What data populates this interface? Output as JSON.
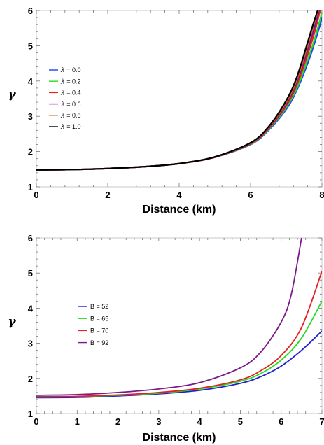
{
  "chart_data": [
    {
      "type": "line",
      "title": "",
      "xlabel": "Distance (km)",
      "ylabel": "γ",
      "xlim": [
        0,
        8
      ],
      "ylim": [
        1,
        6
      ],
      "xticks": [
        0,
        2,
        4,
        6,
        8
      ],
      "yticks": [
        1,
        2,
        3,
        4,
        5,
        6
      ],
      "grid": false,
      "legend_position": "left",
      "legend_symbol": "λ",
      "series": [
        {
          "name": "λ = 0.0",
          "legend_value": "0.0",
          "color": "#1f3fff",
          "x": [
            0,
            1,
            2,
            3,
            4,
            5,
            6,
            6.5,
            7,
            7.3,
            7.6,
            7.8,
            7.95,
            8
          ],
          "y": [
            1.48,
            1.49,
            1.52,
            1.57,
            1.66,
            1.84,
            2.2,
            2.6,
            3.2,
            3.75,
            4.5,
            5.1,
            5.6,
            5.8
          ]
        },
        {
          "name": "λ = 0.2",
          "legend_value": "0.2",
          "color": "#22dd22",
          "x": [
            0,
            1,
            2,
            3,
            4,
            5,
            6,
            6.5,
            7,
            7.3,
            7.6,
            7.8,
            7.95,
            8
          ],
          "y": [
            1.48,
            1.49,
            1.52,
            1.57,
            1.66,
            1.84,
            2.21,
            2.62,
            3.25,
            3.8,
            4.6,
            5.2,
            5.75,
            5.95
          ]
        },
        {
          "name": "λ = 0.4",
          "legend_value": "0.4",
          "color": "#e62020",
          "x": [
            0,
            1,
            2,
            3,
            4,
            5,
            6,
            6.5,
            7,
            7.3,
            7.6,
            7.8,
            7.95
          ],
          "y": [
            1.48,
            1.49,
            1.52,
            1.57,
            1.66,
            1.84,
            2.22,
            2.64,
            3.3,
            3.9,
            4.75,
            5.4,
            6.0
          ]
        },
        {
          "name": "λ = 0.6",
          "legend_value": "0.6",
          "color": "#7a1a8a",
          "x": [
            0,
            1,
            2,
            3,
            4,
            5,
            6,
            6.5,
            7,
            7.3,
            7.6,
            7.8,
            7.92
          ],
          "y": [
            1.48,
            1.49,
            1.52,
            1.57,
            1.66,
            1.84,
            2.23,
            2.66,
            3.35,
            3.98,
            4.88,
            5.55,
            6.0
          ]
        },
        {
          "name": "λ = 0.8",
          "legend_value": "0.8",
          "color": "#c8641e",
          "x": [
            0,
            1,
            2,
            3,
            4,
            5,
            6,
            6.5,
            7,
            7.3,
            7.6,
            7.8,
            7.9
          ],
          "y": [
            1.48,
            1.49,
            1.52,
            1.57,
            1.66,
            1.85,
            2.24,
            2.68,
            3.4,
            4.05,
            5.0,
            5.7,
            6.0
          ]
        },
        {
          "name": "λ = 1.0",
          "legend_value": "1.0",
          "color": "#000000",
          "x": [
            0,
            1,
            2,
            3,
            4,
            5,
            6,
            6.5,
            7,
            7.3,
            7.6,
            7.75,
            7.88
          ],
          "y": [
            1.48,
            1.49,
            1.52,
            1.57,
            1.66,
            1.85,
            2.25,
            2.7,
            3.45,
            4.12,
            5.1,
            5.6,
            6.0
          ]
        }
      ]
    },
    {
      "type": "line",
      "title": "",
      "xlabel": "Distance (km)",
      "ylabel": "γ",
      "xlim": [
        0,
        7
      ],
      "ylim": [
        1,
        6
      ],
      "xticks": [
        0,
        1,
        2,
        3,
        4,
        5,
        6,
        7
      ],
      "yticks": [
        1,
        2,
        3,
        4,
        5,
        6
      ],
      "grid": false,
      "legend_position": "left",
      "series": [
        {
          "name": "B = 52",
          "color": "#1f1fd0",
          "x": [
            0,
            1,
            2,
            3,
            4,
            5,
            5.5,
            6,
            6.5,
            7
          ],
          "y": [
            1.45,
            1.46,
            1.5,
            1.56,
            1.66,
            1.86,
            2.05,
            2.35,
            2.8,
            3.35
          ]
        },
        {
          "name": "B = 65",
          "color": "#22dd22",
          "x": [
            0,
            1,
            2,
            3,
            4,
            5,
            5.5,
            6,
            6.5,
            7
          ],
          "y": [
            1.47,
            1.48,
            1.52,
            1.58,
            1.7,
            1.92,
            2.14,
            2.52,
            3.15,
            4.2
          ]
        },
        {
          "name": "B = 70",
          "color": "#e62020",
          "x": [
            0,
            1,
            2,
            3,
            4,
            5,
            5.5,
            6,
            6.5,
            7
          ],
          "y": [
            1.48,
            1.49,
            1.53,
            1.6,
            1.72,
            1.96,
            2.22,
            2.65,
            3.45,
            5.05
          ]
        },
        {
          "name": "B = 92",
          "color": "#7a1a8a",
          "x": [
            0,
            1,
            2,
            3,
            4,
            5,
            5.5,
            6,
            6.25,
            6.5
          ],
          "y": [
            1.52,
            1.54,
            1.6,
            1.7,
            1.88,
            2.3,
            2.75,
            3.6,
            4.4,
            6.0
          ]
        }
      ]
    }
  ]
}
